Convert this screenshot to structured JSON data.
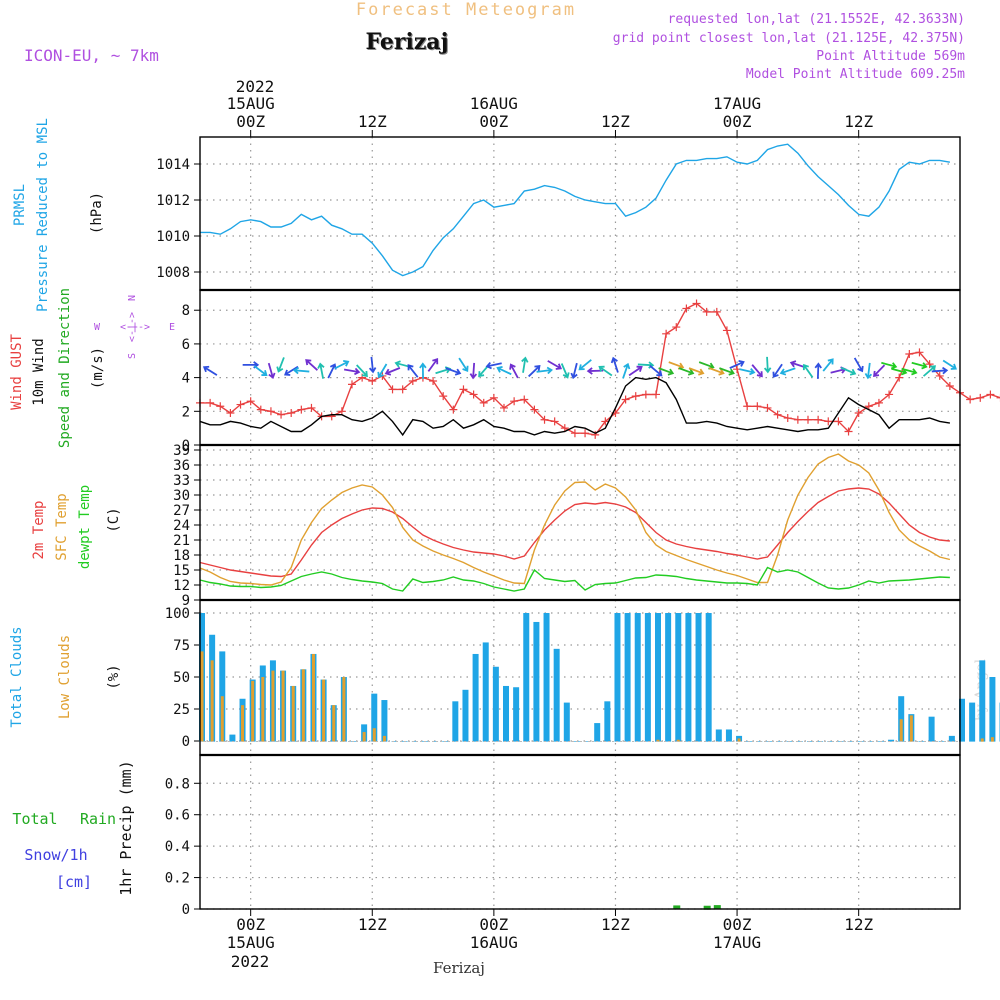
{
  "header": {
    "top_title": "Forecast Meteogram",
    "location": "Ferizaj",
    "model": "ICON-EU, ~ 7km",
    "requested": "requested lon,lat (21.1552E, 42.3633N)",
    "grid_point": "grid point closest lon,lat (21.125E, 42.375N)",
    "point_alt": "Point Altitude 569m",
    "model_alt": "Model Point Altitude 609.25m",
    "footer_location": "Ferizaj",
    "watermark": "by Angel"
  },
  "time_axis": {
    "top_year": "2022",
    "bottom_year": "2022",
    "ticks": [
      {
        "hour": 0,
        "label": "00Z",
        "date": "15AUG"
      },
      {
        "hour": 12,
        "label": "12Z",
        "date": ""
      },
      {
        "hour": 24,
        "label": "00Z",
        "date": "16AUG"
      },
      {
        "hour": 36,
        "label": "12Z",
        "date": ""
      },
      {
        "hour": 48,
        "label": "00Z",
        "date": "17AUG"
      },
      {
        "hour": 60,
        "label": "12Z",
        "date": ""
      }
    ]
  },
  "colors": {
    "pressure": "#1fa5e6",
    "gust": "#e84040",
    "wind": "#000000",
    "direction": "#2ab82a",
    "t2m": "#e84040",
    "sfc": "#e0a030",
    "dewpt": "#22cc22",
    "total_clouds": "#1fa5e6",
    "low_clouds": "#e0a030",
    "rain": "#22aa22",
    "snow": "#4040e0",
    "header_orange": "#f0c080",
    "header_purple": "#b050e0",
    "grid": "#999999"
  },
  "chart_data": [
    {
      "type": "line",
      "panel": "pressure",
      "ylabel_parts": [
        "PRMSL",
        "Pressure Reduced to MSL",
        "(hPa)"
      ],
      "ylim": [
        1007,
        1015.5
      ],
      "yticks": [
        1008,
        1010,
        1012,
        1014
      ],
      "x_hours_start": -5,
      "x_hours_step": 1,
      "series": [
        {
          "name": "PRMSL",
          "values": [
            1010.2,
            1010.2,
            1010.1,
            1010.4,
            1010.8,
            1010.9,
            1010.8,
            1010.5,
            1010.5,
            1010.7,
            1011.2,
            1010.9,
            1011.1,
            1010.6,
            1010.4,
            1010.1,
            1010.1,
            1009.6,
            1008.9,
            1008.1,
            1007.8,
            1008.0,
            1008.3,
            1009.2,
            1009.9,
            1010.4,
            1011.1,
            1011.8,
            1012.0,
            1011.6,
            1011.7,
            1011.8,
            1012.5,
            1012.6,
            1012.8,
            1012.7,
            1012.5,
            1012.2,
            1012.0,
            1011.9,
            1011.8,
            1011.8,
            1011.1,
            1011.3,
            1011.6,
            1012.1,
            1013.1,
            1014.0,
            1014.2,
            1014.2,
            1014.3,
            1014.3,
            1014.4,
            1014.1,
            1014.0,
            1014.2,
            1014.8,
            1015.0,
            1015.1,
            1014.6,
            1013.9,
            1013.3,
            1012.8,
            1012.3,
            1011.7,
            1011.2,
            1011.1,
            1011.6,
            1012.5,
            1013.7,
            1014.1,
            1014.0,
            1014.2,
            1014.2,
            1014.1
          ]
        }
      ]
    },
    {
      "type": "line",
      "panel": "wind",
      "ylabel_parts": [
        "Wind GUST",
        "10m Wind",
        "Speed and Direction",
        "(m/s)"
      ],
      "compass": [
        "N",
        "W",
        "E",
        "S"
      ],
      "ylim": [
        0,
        9.2
      ],
      "yticks": [
        0,
        2,
        4,
        6,
        8
      ],
      "x_hours_start": -5,
      "x_hours_step": 1,
      "series": [
        {
          "name": "Wind GUST",
          "values": [
            2.5,
            2.5,
            2.3,
            1.9,
            2.4,
            2.6,
            2.1,
            2.0,
            1.8,
            1.9,
            2.1,
            2.2,
            1.7,
            1.7,
            2.0,
            3.6,
            4.0,
            3.8,
            4.1,
            3.3,
            3.3,
            3.8,
            4.0,
            3.8,
            2.9,
            2.1,
            3.3,
            3.0,
            2.5,
            2.8,
            2.2,
            2.6,
            2.7,
            2.1,
            1.5,
            1.4,
            1.0,
            0.7,
            0.7,
            0.6,
            1.4,
            1.9,
            2.7,
            2.9,
            3.0,
            3.0,
            6.6,
            7.0,
            8.1,
            8.4,
            7.9,
            7.9,
            6.8,
            4.5,
            2.3,
            2.3,
            2.2,
            1.8,
            1.6,
            1.5,
            1.5,
            1.5,
            1.4,
            1.4,
            0.8,
            1.9,
            2.3,
            2.5,
            3.0,
            4.0,
            5.4,
            5.5,
            4.8,
            4.1,
            3.5,
            3.1,
            2.7,
            2.8,
            3.0,
            2.8,
            2.4
          ]
        },
        {
          "name": "10m Wind",
          "values": [
            1.4,
            1.2,
            1.2,
            1.4,
            1.3,
            1.1,
            1.0,
            1.4,
            1.1,
            0.8,
            0.8,
            1.2,
            1.7,
            1.8,
            1.8,
            1.5,
            1.4,
            1.6,
            2.0,
            1.4,
            0.6,
            1.5,
            1.4,
            1.0,
            1.1,
            1.5,
            1.0,
            1.2,
            1.5,
            1.1,
            1.0,
            0.8,
            0.8,
            0.6,
            0.8,
            0.7,
            0.8,
            1.1,
            1.0,
            0.7,
            1.0,
            2.2,
            3.5,
            4.0,
            3.9,
            4.0,
            3.7,
            2.7,
            1.3,
            1.3,
            1.4,
            1.3,
            1.1,
            1.0,
            0.9,
            1.0,
            1.1,
            1.0,
            0.9,
            0.8,
            0.9,
            0.9,
            1.0,
            1.9,
            2.8,
            2.4,
            2.1,
            1.8,
            1.0,
            1.5,
            1.5,
            1.5,
            1.6,
            1.4,
            1.3
          ]
        }
      ]
    },
    {
      "type": "line",
      "panel": "temperature",
      "ylabel_parts": [
        "2m Temp",
        "SFC Temp",
        "dewpt Temp",
        "(C)"
      ],
      "ylim": [
        9,
        40
      ],
      "yticks": [
        9,
        12,
        15,
        18,
        21,
        24,
        27,
        30,
        33,
        36,
        39
      ],
      "x_hours_start": -5,
      "x_hours_step": 1,
      "series": [
        {
          "name": "2m Temp",
          "values": [
            16.5,
            16.0,
            15.5,
            15.0,
            14.7,
            14.4,
            14.1,
            13.8,
            13.7,
            14.2,
            17.0,
            20.0,
            22.5,
            24.0,
            25.3,
            26.2,
            27.0,
            27.4,
            27.3,
            26.6,
            25.3,
            23.6,
            22.0,
            21.0,
            20.2,
            19.5,
            19.0,
            18.6,
            18.4,
            18.2,
            17.8,
            17.2,
            17.8,
            20.5,
            23.0,
            25.0,
            26.8,
            28.1,
            28.4,
            28.2,
            28.5,
            28.2,
            27.6,
            26.5,
            24.5,
            22.5,
            21.0,
            20.2,
            19.7,
            19.3,
            19.0,
            18.7,
            18.3,
            18.0,
            17.6,
            17.2,
            17.6,
            20.0,
            22.5,
            24.7,
            26.7,
            28.5,
            29.7,
            30.8,
            31.2,
            31.4,
            31.2,
            30.2,
            28.4,
            26.2,
            24.0,
            22.5,
            21.6,
            21.0,
            20.8
          ]
        },
        {
          "name": "SFC Temp",
          "values": [
            15.4,
            14.6,
            13.5,
            12.7,
            12.4,
            12.3,
            12.1,
            12.0,
            12.6,
            15.5,
            21.0,
            24.5,
            27.3,
            29.0,
            30.5,
            31.4,
            32.0,
            31.6,
            30.0,
            27.5,
            23.5,
            21.0,
            19.8,
            18.8,
            18.0,
            17.3,
            16.5,
            15.5,
            14.6,
            13.8,
            13.0,
            12.4,
            12.3,
            19.0,
            24.0,
            28.0,
            30.8,
            32.5,
            32.6,
            31.0,
            32.2,
            31.4,
            29.6,
            27.0,
            22.5,
            20.0,
            18.7,
            17.9,
            17.1,
            16.4,
            15.7,
            15.0,
            14.4,
            13.9,
            13.2,
            12.5,
            12.5,
            18.0,
            25.0,
            30.0,
            33.5,
            36.2,
            37.5,
            38.2,
            36.8,
            36.0,
            34.4,
            31.0,
            26.5,
            23.0,
            21.0,
            19.8,
            18.8,
            17.6,
            17.1
          ]
        },
        {
          "name": "dewpt Temp",
          "values": [
            13.0,
            12.5,
            12.2,
            11.8,
            11.7,
            11.7,
            11.5,
            11.6,
            11.9,
            12.8,
            13.7,
            14.2,
            14.6,
            14.2,
            13.5,
            13.1,
            12.8,
            12.6,
            12.3,
            11.2,
            10.8,
            13.2,
            12.5,
            12.7,
            13.0,
            13.6,
            13.0,
            12.8,
            12.3,
            11.6,
            11.2,
            10.8,
            11.2,
            15.0,
            13.3,
            13.0,
            12.7,
            12.9,
            11.0,
            12.1,
            12.3,
            12.4,
            12.9,
            13.4,
            13.5,
            14.0,
            13.9,
            13.7,
            13.3,
            13.0,
            12.8,
            12.6,
            12.4,
            12.4,
            12.3,
            12.0,
            15.5,
            14.6,
            15.0,
            14.6,
            13.5,
            12.4,
            11.4,
            11.2,
            11.4,
            12.0,
            12.8,
            12.4,
            12.8,
            12.9,
            13.0,
            13.2,
            13.4,
            13.6,
            13.5
          ]
        }
      ]
    },
    {
      "type": "bar",
      "panel": "clouds",
      "ylabel_parts": [
        "Total Clouds",
        "Low Clouds",
        "(%)"
      ],
      "ylim": [
        0,
        100
      ],
      "yticks": [
        0,
        25,
        50,
        75,
        100
      ],
      "x_hours_start": -5,
      "x_hours_step": 1,
      "series": [
        {
          "name": "Total Clouds",
          "values": [
            100,
            83,
            70,
            5,
            33,
            48,
            59,
            63,
            55,
            43,
            56,
            68,
            48,
            28,
            50,
            0,
            13,
            37,
            32,
            0,
            0,
            0,
            0,
            0,
            0,
            31,
            40,
            68,
            77,
            58,
            43,
            42,
            100,
            93,
            100,
            72,
            30,
            0,
            0,
            14,
            31,
            100,
            100,
            100,
            100,
            100,
            100,
            100,
            100,
            100,
            100,
            9,
            9,
            4,
            0,
            0,
            0,
            0,
            0,
            0,
            0,
            0,
            0,
            0,
            0,
            0,
            0,
            0,
            1,
            35,
            21,
            0,
            19,
            0,
            4,
            33,
            30,
            63,
            50,
            30,
            0
          ]
        },
        {
          "name": "Low Clouds",
          "values": [
            70,
            63,
            35,
            0,
            28,
            47,
            50,
            55,
            55,
            43,
            56,
            68,
            48,
            28,
            50,
            0,
            7,
            10,
            4,
            0,
            0,
            0,
            0,
            0,
            0,
            0,
            0,
            0,
            0,
            0,
            0,
            0,
            0,
            0,
            0,
            0,
            0,
            0,
            0,
            0,
            0,
            0,
            0,
            0,
            0,
            1,
            0,
            1,
            0,
            0,
            0,
            0,
            0,
            2,
            0,
            0,
            0,
            0,
            0,
            0,
            0,
            0,
            0,
            0,
            0,
            0,
            0,
            0,
            0,
            17,
            20,
            0,
            0,
            0,
            0,
            0,
            0,
            2,
            3,
            0,
            0
          ]
        }
      ]
    },
    {
      "type": "bar",
      "panel": "precip",
      "ylabel_parts": [
        "Total",
        "Rain",
        "Snow/1h",
        "[cm]",
        "1hr Precip (mm)"
      ],
      "ylim": [
        0,
        0.98
      ],
      "yticks": [
        0,
        0.2,
        0.4,
        0.6,
        0.8
      ],
      "ytick_labels": [
        "0",
        "0.2",
        "0.4",
        "0.6",
        "0.8"
      ],
      "series": [
        {
          "name": "Rain",
          "hours": [
            42,
            45,
            46
          ],
          "values": [
            0.01,
            0.008,
            0.012
          ]
        }
      ]
    }
  ]
}
